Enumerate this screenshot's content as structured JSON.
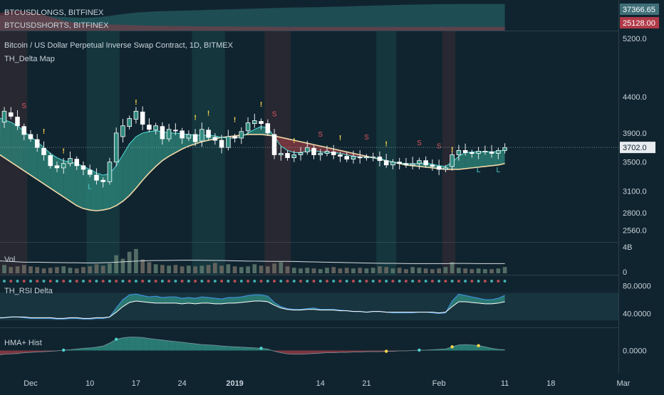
{
  "colors": {
    "background": "#10242f",
    "separator": "#2b3f4b",
    "text": "#c8d3da",
    "up_candle": "#ffffff",
    "down_candle": "#ffffff",
    "bull_fill": "#2e8a7e",
    "bear_fill": "#8e3b44",
    "ma_line": "#f2d9a8",
    "fast_line": "#4fd1cf",
    "long_color": "#2c6f73",
    "short_color": "#8a3c45",
    "rsi_blue": "#3d8fd6",
    "rsi_red": "#e0565f",
    "marker_yellow": "#ffd84a",
    "marker_red": "#e0565f",
    "price_tag_bg": "#e8ecef",
    "axis_bg": "#10242f"
  },
  "header": {
    "longs_title": "BTCUSDLONGS, BITFINEX",
    "shorts_title": "BTCUSDSHORTS, BITFINEX",
    "longs_value": "37366.65",
    "shorts_value": "25128.00"
  },
  "main_title": "Bitcoin / US Dollar Perpetual Inverse Swap Contract, 1D, BITMEX",
  "indicator_title": "TH_Delta Map",
  "current_price": "3702.0",
  "volume": {
    "label": "Vol",
    "ticks": [
      "4B",
      "0"
    ]
  },
  "rsi": {
    "label": "TH_RSI Delta",
    "ticks": [
      "80.0000",
      "40.0000"
    ]
  },
  "hist": {
    "label": "HMA+ Hist",
    "ticks": [
      "0.0000"
    ]
  },
  "marker_text": {
    "sell": "S",
    "alert": "!",
    "long": "L"
  },
  "chart_data": [
    {
      "type": "candlestick",
      "title": "Bitcoin / US Dollar Perpetual Inverse Swap Contract, 1D, BITMEX",
      "ylim": [
        2400,
        5300
      ],
      "y_ticks": [
        5200,
        4400,
        3900,
        3500,
        3100,
        2800,
        2560
      ],
      "y_tick_labels": [
        "5200.0",
        "4400.0",
        "3900.0",
        "3500.0",
        "3100.0",
        "2800.0",
        "2560.0"
      ],
      "x_start": "2018-11-22",
      "x_ticks": [
        {
          "date": "2018-12-01",
          "label": "Dec"
        },
        {
          "date": "2018-12-10",
          "label": "10"
        },
        {
          "date": "2018-12-17",
          "label": "17"
        },
        {
          "date": "2018-12-24",
          "label": "24"
        },
        {
          "date": "2019-01-01",
          "label": "2019"
        },
        {
          "date": "2019-01-14",
          "label": "14"
        },
        {
          "date": "2019-01-21",
          "label": "21"
        },
        {
          "date": "2019-02-01",
          "label": "Feb"
        },
        {
          "date": "2019-02-11",
          "label": "11"
        },
        {
          "date": "2019-02-18",
          "label": "18"
        },
        {
          "date": "2019-03-01",
          "label": "Mar"
        }
      ],
      "close": [
        4400,
        4560,
        4300,
        4150,
        3850,
        4200,
        4130,
        4000,
        3880,
        3820,
        3700,
        3600,
        3450,
        3420,
        3480,
        3550,
        3450,
        3400,
        3330,
        3250,
        3230,
        3500,
        3900,
        4000,
        4100,
        4200,
        4020,
        3950,
        4000,
        3820,
        3950,
        3930,
        3830,
        3880,
        3780,
        3950,
        3840,
        3800,
        3700,
        3850,
        3830,
        3920,
        4040,
        4070,
        4030,
        3900,
        3600,
        3620,
        3560,
        3600,
        3630,
        3700,
        3600,
        3620,
        3650,
        3600,
        3580,
        3540,
        3580,
        3560,
        3570,
        3570,
        3520,
        3460,
        3500,
        3480,
        3460,
        3480,
        3520,
        3460,
        3440,
        3400,
        3420,
        3600,
        3660,
        3630,
        3620,
        3650,
        3650,
        3620,
        3660,
        3700
      ],
      "series": [
        {
          "name": "",
          "values": [
            4500,
            4550,
            4470,
            4330,
            4100,
            4050,
            4180,
            4120,
            3990,
            3880,
            3810,
            3690,
            3590,
            3450,
            3420,
            3480,
            3540,
            3450,
            3390,
            3320,
            3250,
            3230,
            3500,
            3850,
            3990,
            4090,
            4190,
            4010,
            3940,
            3990,
            3820,
            3940,
            3930,
            3830,
            3880,
            3790,
            3940,
            3840,
            3800,
            3700,
            3850,
            3830,
            3930,
            4030,
            4060,
            4030,
            3880,
            3600,
            3620,
            3560,
            3600,
            3640,
            3690,
            3600,
            3620,
            3640,
            3600,
            3580,
            3540,
            3570,
            3560,
            3570,
            3570,
            3520,
            3460,
            3500,
            3480,
            3460,
            3480,
            3520,
            3460,
            3440,
            3400,
            3440,
            3600,
            3660,
            3630,
            3620,
            3640,
            3640,
            3620,
            3660
          ]
        }
      ],
      "markers": {
        "sell_days": [
          1,
          8,
          46,
          53,
          60,
          68,
          71
        ],
        "alert_days": [
          11,
          14,
          25,
          34,
          36,
          40,
          44,
          49,
          56,
          63,
          73
        ],
        "long_days": [
          18,
          77,
          80
        ]
      },
      "moving_average": [
        3850,
        3800,
        3740,
        3680,
        3620,
        3560,
        3500,
        3440,
        3380,
        3320,
        3260,
        3200,
        3140,
        3080,
        3020,
        2960,
        2900,
        2860,
        2840,
        2830,
        2840,
        2860,
        2900,
        2960,
        3040,
        3140,
        3250,
        3350,
        3440,
        3520,
        3580,
        3630,
        3680,
        3720,
        3750,
        3780,
        3800,
        3820,
        3840,
        3850,
        3860,
        3870,
        3880,
        3880,
        3880,
        3870,
        3860,
        3840,
        3820,
        3800,
        3780,
        3760,
        3740,
        3720,
        3700,
        3680,
        3660,
        3640,
        3620,
        3600,
        3580,
        3560,
        3540,
        3520,
        3500,
        3480,
        3460,
        3450,
        3440,
        3430,
        3420,
        3410,
        3400,
        3400,
        3400,
        3410,
        3420,
        3430,
        3440,
        3450,
        3460,
        3480
      ],
      "fast_line": [
        4300,
        4400,
        4350,
        4250,
        4120,
        4080,
        4050,
        4000,
        3920,
        3850,
        3780,
        3700,
        3620,
        3560,
        3520,
        3500,
        3480,
        3440,
        3400,
        3350,
        3320,
        3340,
        3450,
        3600,
        3750,
        3850,
        3900,
        3920,
        3930,
        3920,
        3900,
        3900,
        3890,
        3880,
        3870,
        3870,
        3870,
        3860,
        3840,
        3830,
        3830,
        3850,
        3900,
        3950,
        3990,
        3970,
        3850,
        3720,
        3660,
        3630,
        3630,
        3650,
        3660,
        3640,
        3630,
        3630,
        3620,
        3600,
        3580,
        3570,
        3565,
        3560,
        3550,
        3520,
        3500,
        3490,
        3480,
        3475,
        3480,
        3490,
        3470,
        3450,
        3440,
        3500,
        3580,
        3630,
        3640,
        3640,
        3645,
        3640,
        3645,
        3670
      ],
      "background_bands": [
        {
          "start": 3,
          "end": 8,
          "color": "red"
        },
        {
          "start": 18,
          "end": 22,
          "color": "green"
        },
        {
          "start": 34,
          "end": 38,
          "color": "green"
        },
        {
          "start": 45,
          "end": 48,
          "color": "red"
        },
        {
          "start": 62,
          "end": 64,
          "color": "green"
        },
        {
          "start": 72,
          "end": 73,
          "color": "red"
        }
      ]
    },
    {
      "type": "area",
      "title": "",
      "series": [
        {
          "name": "BTCUSDLONGS, BITFINEX",
          "values": [
            30000,
            30200,
            30500,
            30700,
            31000,
            31200,
            31300,
            31400,
            31400,
            31300,
            31200,
            31000,
            30800,
            30600,
            30400,
            30200,
            30100,
            30000,
            30100,
            30300,
            30600,
            31000,
            31500,
            32000,
            32400,
            32800,
            33000,
            33200,
            33400,
            33500,
            33600,
            33700,
            33800,
            33900,
            34000,
            34100,
            34200,
            34300,
            34400,
            34500,
            34600,
            34700,
            34800,
            34900,
            35000,
            35100,
            35200,
            35300,
            35400,
            35500,
            35500,
            35600,
            35600,
            35700,
            35800,
            35900,
            36000,
            36100,
            36200,
            36300,
            36400,
            36500,
            36600,
            36700,
            36800,
            36900,
            37000,
            37050,
            37100,
            37150,
            37200,
            37250,
            37300,
            37320,
            37340,
            37350,
            37360,
            37366,
            37366,
            37366,
            37366,
            37366.65
          ]
        },
        {
          "name": "BTCUSDSHORTS, BITFINEX",
          "values": [
            27000,
            28000,
            29000,
            30500,
            32000,
            33000,
            33500,
            33800,
            33500,
            33000,
            32500,
            31500,
            30500,
            29500,
            28500,
            27800,
            27200,
            26800,
            26600,
            26500,
            26400,
            26400,
            26300,
            26200,
            26100,
            26000,
            25900,
            25800,
            25700,
            25700,
            25600,
            25600,
            25500,
            25500,
            25400,
            25400,
            25400,
            25300,
            25300,
            25300,
            25300,
            25200,
            25200,
            25200,
            25200,
            25200,
            25150,
            25150,
            25150,
            25150,
            25150,
            25150,
            25130,
            25130,
            25130,
            25130,
            25130,
            25130,
            25130,
            25130,
            25130,
            25130,
            25128,
            25128,
            25128,
            25128,
            25128,
            25128,
            25128,
            25128,
            25128,
            25128,
            25128,
            25128,
            25128,
            25128,
            25128,
            25128,
            25128,
            25128,
            25128,
            25128
          ]
        }
      ]
    },
    {
      "type": "bar",
      "title": "Vol",
      "ylim": [
        0,
        4
      ],
      "values": [
        0.9,
        1.0,
        1.1,
        0.9,
        1.8,
        1.2,
        0.9,
        1.0,
        1.2,
        1.0,
        0.9,
        0.7,
        0.8,
        0.9,
        1.0,
        0.8,
        0.7,
        0.9,
        1.0,
        1.3,
        1.1,
        1.4,
        2.6,
        2.1,
        3.1,
        3.5,
        2.0,
        1.6,
        1.3,
        1.2,
        1.1,
        1.2,
        1.0,
        1.1,
        1.0,
        1.1,
        1.2,
        1.5,
        1.1,
        1.3,
        1.0,
        0.9,
        1.0,
        1.3,
        1.1,
        1.0,
        1.4,
        1.6,
        1.0,
        0.8,
        0.7,
        0.8,
        0.7,
        0.6,
        0.8,
        0.9,
        0.7,
        0.8,
        0.7,
        0.8,
        0.7,
        0.8,
        1.0,
        0.9,
        0.7,
        0.8,
        0.6,
        0.9,
        0.8,
        0.7,
        0.6,
        0.7,
        0.9,
        1.6,
        0.8,
        0.7,
        0.6,
        0.7,
        0.6,
        0.6,
        0.7,
        0.9
      ],
      "average_line": [
        2.0,
        1.95,
        1.9,
        1.85,
        1.8,
        1.75,
        1.7,
        1.65,
        1.6,
        1.6,
        1.6,
        1.58,
        1.56,
        1.55,
        1.54,
        1.53,
        1.52,
        1.5,
        1.5,
        1.5,
        1.52,
        1.55,
        1.6,
        1.65,
        1.7,
        1.75,
        1.8,
        1.82,
        1.84,
        1.85,
        1.86,
        1.87,
        1.88,
        1.88,
        1.88,
        1.87,
        1.86,
        1.85,
        1.84,
        1.82,
        1.8,
        1.78,
        1.76,
        1.75,
        1.74,
        1.73,
        1.72,
        1.72,
        1.72,
        1.7,
        1.68,
        1.66,
        1.64,
        1.62,
        1.6,
        1.58,
        1.56,
        1.54,
        1.52,
        1.5,
        1.48,
        1.46,
        1.45,
        1.44,
        1.43,
        1.42,
        1.41,
        1.4,
        1.4,
        1.4,
        1.4,
        1.4,
        1.4,
        1.42,
        1.42,
        1.42,
        1.41,
        1.4,
        1.4,
        1.4,
        1.4,
        1.4
      ],
      "ticks": [
        "4B",
        "0"
      ]
    },
    {
      "type": "line",
      "title": "TH_RSI Delta",
      "ylim": [
        20,
        95
      ],
      "series": [
        {
          "name": "",
          "values": [
            38,
            40,
            39,
            37,
            33,
            34,
            35,
            35,
            34,
            33,
            33,
            33,
            33,
            32,
            32,
            33,
            33,
            32,
            32,
            33,
            33,
            35,
            48,
            60,
            67,
            68,
            66,
            64,
            65,
            63,
            64,
            64,
            62,
            63,
            62,
            64,
            63,
            62,
            61,
            63,
            63,
            64,
            66,
            67,
            67,
            65,
            56,
            50,
            47,
            46,
            46,
            47,
            48,
            46,
            46,
            46,
            45,
            44,
            43,
            43,
            42,
            43,
            43,
            42,
            41,
            41,
            41,
            41,
            42,
            42,
            41,
            40,
            41,
            58,
            68,
            66,
            64,
            62,
            60,
            60,
            62,
            66
          ]
        },
        {
          "name": "",
          "values": [
            36,
            37,
            37,
            36,
            34,
            34,
            35,
            35,
            35,
            34,
            34,
            34,
            34,
            33,
            33,
            34,
            34,
            33,
            33,
            34,
            34,
            35,
            42,
            50,
            56,
            58,
            57,
            56,
            55,
            55,
            55,
            55,
            54,
            55,
            54,
            55,
            55,
            54,
            54,
            55,
            55,
            56,
            57,
            58,
            58,
            57,
            52,
            48,
            46,
            45,
            45,
            46,
            46,
            45,
            45,
            45,
            44,
            44,
            43,
            43,
            42,
            43,
            43,
            42,
            42,
            42,
            42,
            42,
            42,
            42,
            42,
            41,
            42,
            50,
            57,
            57,
            56,
            55,
            54,
            54,
            55,
            57
          ]
        }
      ],
      "ticks": [
        "80.0000",
        "40.0000"
      ]
    },
    {
      "type": "area",
      "title": "HMA+ Hist",
      "ylim": [
        -6,
        6
      ],
      "values": [
        -5.5,
        -4.0,
        -2.5,
        -1.6,
        -1.2,
        -1.0,
        -0.9,
        -0.8,
        -0.6,
        -0.5,
        -0.4,
        -0.3,
        -0.2,
        -0.1,
        0.1,
        0.2,
        0.4,
        0.6,
        0.7,
        0.9,
        1.2,
        2.0,
        3.0,
        3.4,
        3.6,
        3.6,
        3.5,
        3.2,
        3.0,
        2.8,
        2.6,
        2.4,
        2.2,
        2.0,
        1.8,
        1.6,
        1.5,
        1.4,
        1.2,
        1.1,
        1.0,
        0.9,
        0.8,
        0.7,
        0.6,
        0.4,
        -0.2,
        -0.6,
        -0.9,
        -1.0,
        -1.0,
        -0.9,
        -0.8,
        -0.7,
        -0.6,
        -0.6,
        -0.5,
        -0.5,
        -0.4,
        -0.4,
        -0.3,
        -0.3,
        -0.3,
        -0.2,
        -0.2,
        -0.1,
        -0.1,
        0.0,
        0.1,
        0.1,
        0.2,
        0.3,
        0.4,
        1.0,
        1.5,
        1.6,
        1.5,
        1.3,
        1.0,
        0.6,
        0.3,
        0.2
      ],
      "ticks": [
        "0.0000"
      ]
    }
  ]
}
